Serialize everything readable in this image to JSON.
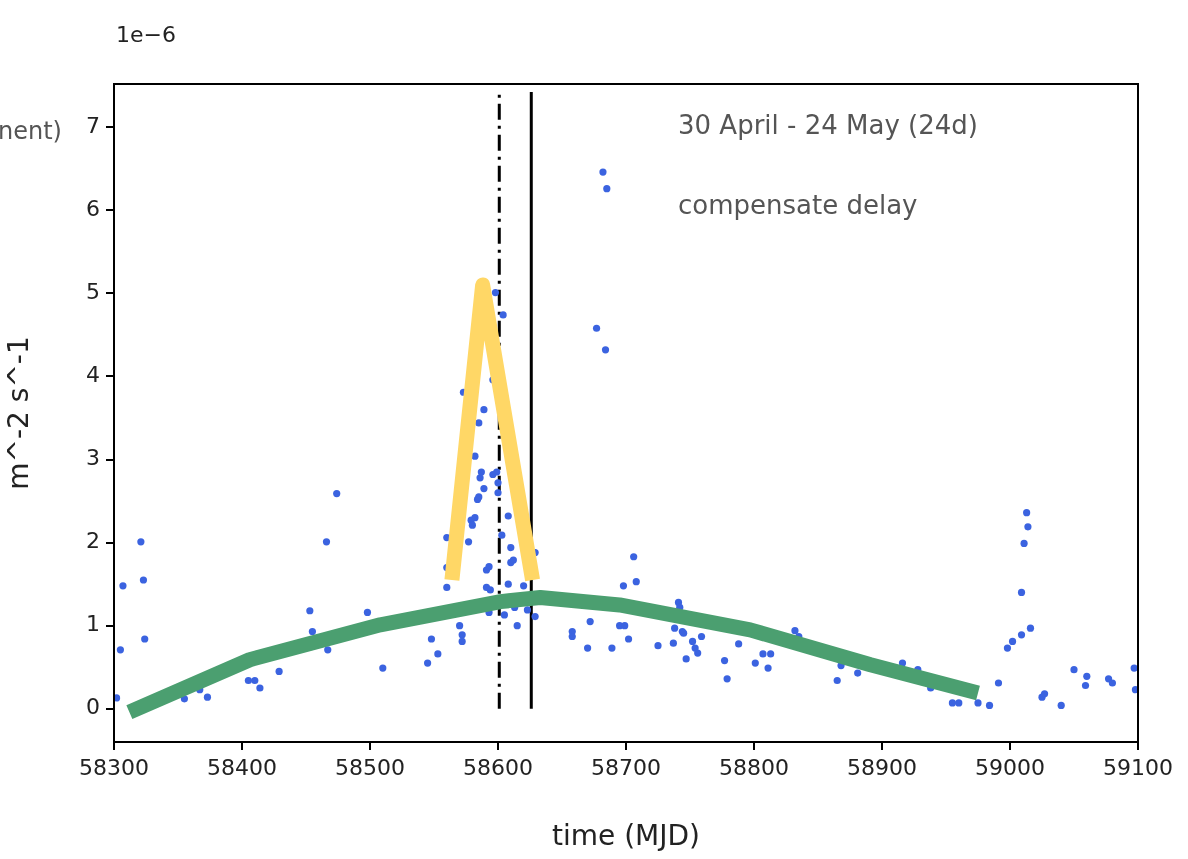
{
  "chart_data": {
    "type": "scatter",
    "xlabel": "time (MJD)",
    "ylabel": "m^-2 s^-1",
    "annotations": [
      "1e−6",
      "30 April - 24 May (24d)",
      "compensate delay",
      "nent)"
    ],
    "xlim": [
      58300,
      59100
    ],
    "xticks": [
      58300,
      58400,
      58500,
      58600,
      58700,
      58800,
      58900,
      59000,
      59100
    ],
    "ylim": [
      -0.4,
      7.52
    ],
    "yticks": [
      0,
      1,
      2,
      3,
      4,
      5,
      6,
      7
    ],
    "marker": "circle",
    "legend": false,
    "grid": false,
    "ref_lines": [
      {
        "axis": "x",
        "value": 58601,
        "color": "#000000",
        "line_style": "dashed"
      },
      {
        "axis": "x",
        "value": 58626,
        "color": "#000000",
        "line_style": "solid"
      }
    ],
    "series": [
      {
        "color": "#3b63e0",
        "x": [
          58302,
          58305,
          58307,
          58321,
          58323,
          58324,
          58355,
          58367,
          58373,
          58405,
          58410,
          58414,
          58429,
          58453,
          58455,
          58466,
          58467,
          58474,
          58498,
          58510,
          58545,
          58548,
          58553,
          58560,
          58560,
          58560,
          58570,
          58572,
          58572,
          58577,
          58579,
          58582,
          58580,
          58584,
          58585,
          58589,
          58586,
          58587,
          58582,
          58591,
          58593,
          58591,
          58594,
          58593,
          58596,
          58599,
          58600,
          58600,
          58603,
          58605,
          58608,
          58608,
          58610,
          58610,
          58612,
          58613,
          58615,
          58620,
          58623,
          58629,
          58629,
          58598,
          58604,
          58596,
          58573,
          58589,
          58585,
          58682,
          58685,
          58677,
          58684,
          58658,
          58658,
          58672,
          58670,
          58689,
          58695,
          58699,
          58698,
          58708,
          58706,
          58702,
          58725,
          58737,
          58741,
          58742,
          58738,
          58744,
          58747,
          58752,
          58754,
          58745,
          58756,
          58759,
          58777,
          58779,
          58788,
          58801,
          58807,
          58813,
          58811,
          58832,
          58835,
          58865,
          58868,
          58881,
          58916,
          58928,
          58938,
          58955,
          58960,
          58975,
          58984,
          58991,
          58998,
          59002,
          59009,
          59016,
          59009,
          59011,
          59013,
          59014,
          59025,
          59027,
          59040,
          59050,
          59059,
          59060,
          59077,
          59080,
          59097,
          59098
        ],
        "values": [
          0.13,
          0.71,
          1.48,
          2.01,
          1.55,
          0.84,
          0.12,
          0.23,
          0.14,
          0.34,
          0.34,
          0.25,
          0.45,
          1.18,
          0.93,
          2.01,
          0.71,
          2.59,
          1.16,
          0.49,
          0.55,
          0.84,
          0.66,
          1.46,
          2.06,
          1.7,
          1.0,
          0.89,
          0.81,
          2.01,
          2.27,
          2.3,
          2.21,
          2.52,
          2.55,
          2.65,
          2.78,
          2.85,
          3.04,
          1.67,
          1.71,
          1.46,
          1.43,
          1.16,
          2.82,
          2.85,
          2.72,
          2.6,
          2.09,
          1.13,
          2.32,
          1.5,
          1.94,
          1.76,
          1.79,
          1.22,
          1.0,
          1.48,
          1.19,
          1.88,
          1.11,
          5.01,
          4.74,
          3.96,
          3.81,
          3.6,
          3.44,
          6.46,
          6.26,
          4.58,
          4.32,
          0.93,
          0.87,
          1.05,
          0.73,
          0.73,
          1.0,
          1.0,
          1.48,
          1.53,
          1.83,
          0.84,
          0.76,
          0.79,
          1.28,
          1.22,
          0.97,
          0.93,
          0.6,
          0.81,
          0.73,
          0.91,
          0.67,
          0.87,
          0.58,
          0.36,
          0.78,
          0.55,
          0.66,
          0.66,
          0.49,
          0.94,
          0.87,
          0.34,
          0.52,
          0.43,
          0.55,
          0.47,
          0.25,
          0.07,
          0.07,
          0.07,
          0.04,
          0.31,
          0.73,
          0.81,
          0.89,
          0.97,
          1.4,
          1.99,
          2.36,
          2.19,
          0.14,
          0.18,
          0.04,
          0.47,
          0.28,
          0.39,
          0.36,
          0.31,
          0.49,
          0.23
        ]
      },
      {
        "type": "line",
        "color": "#4b9f70",
        "marker": "none",
        "x": [
          58312,
          58406,
          58508,
          58602,
          58633,
          58695,
          58797,
          58891,
          58975
        ],
        "values": [
          -0.04,
          0.59,
          1.01,
          1.29,
          1.34,
          1.25,
          0.95,
          0.53,
          0.19
        ]
      },
      {
        "type": "line",
        "color": "#ffd766",
        "marker": "none",
        "x": [
          58564,
          58588,
          58627
        ],
        "values": [
          1.55,
          5.1,
          1.55
        ]
      }
    ]
  }
}
